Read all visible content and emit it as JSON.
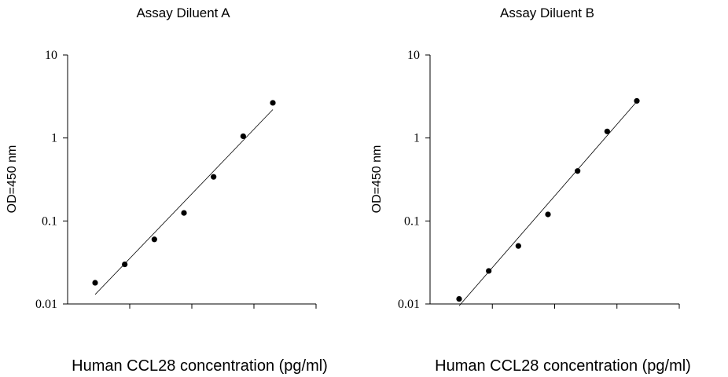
{
  "chart_data": [
    {
      "type": "scatter",
      "title": "Assay Diluent A",
      "xlabel": "Human CCL28 concentration (pg/ml)",
      "ylabel": "OD=450 nm",
      "yscale": "log",
      "ylim": [
        0.01,
        10
      ],
      "yticks": [
        "0.01",
        "0.1",
        "1",
        "10"
      ],
      "x_tick_count": 4,
      "series": [
        {
          "values": [
            0.018,
            0.03,
            0.06,
            0.125,
            0.34,
            1.05,
            2.65
          ]
        }
      ],
      "fit_line": [
        0.013,
        2.2
      ]
    },
    {
      "type": "scatter",
      "title": "Assay Diluent B",
      "xlabel": "Human CCL28 concentration (pg/ml)",
      "ylabel": "OD=450 nm",
      "yscale": "log",
      "ylim": [
        0.01,
        10
      ],
      "yticks": [
        "0.01",
        "0.1",
        "1",
        "10"
      ],
      "x_tick_count": 4,
      "series": [
        {
          "values": [
            0.0115,
            0.025,
            0.05,
            0.12,
            0.4,
            1.2,
            2.8
          ]
        }
      ],
      "fit_line": [
        0.0095,
        2.75
      ]
    }
  ]
}
